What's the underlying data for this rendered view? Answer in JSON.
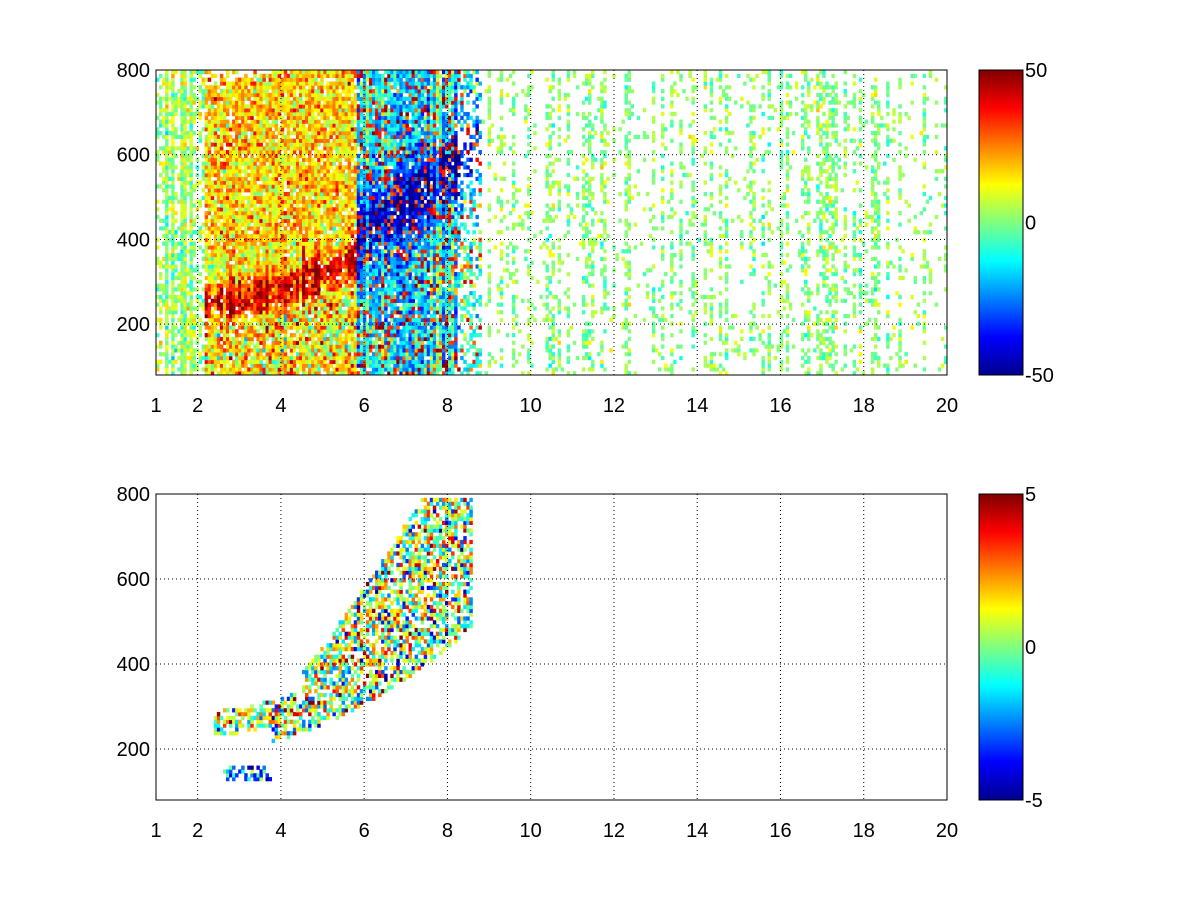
{
  "chart_data": [
    {
      "type": "heatmap",
      "title": "",
      "xlabel": "",
      "ylabel": "",
      "xlim": [
        1,
        20
      ],
      "ylim": [
        80,
        800
      ],
      "x_ticks": [
        "1",
        "2",
        "4",
        "6",
        "8",
        "10",
        "12",
        "14",
        "16",
        "18",
        "20"
      ],
      "x_tick_values": [
        1,
        2,
        4,
        6,
        8,
        10,
        12,
        14,
        16,
        18,
        20
      ],
      "y_ticks": [
        "200",
        "400",
        "600",
        "800"
      ],
      "y_tick_values": [
        200,
        400,
        600,
        800
      ],
      "grid": true,
      "colormap": "jet",
      "clim": [
        -50,
        50
      ],
      "colorbar_ticks": [
        "50",
        "0",
        "-50"
      ],
      "colorbar_tick_values": [
        50,
        0,
        -50
      ],
      "features": [
        {
          "description_values": "positive ridge",
          "x": [
            2.5,
            3.5,
            4.5,
            5.5
          ],
          "y": [
            260,
            270,
            300,
            330
          ],
          "value": 40
        },
        {
          "description_values": "negative region",
          "x": [
            5.8,
            7.8
          ],
          "y": [
            300,
            450
          ],
          "value": -40
        }
      ]
    },
    {
      "type": "heatmap",
      "title": "",
      "xlabel": "",
      "ylabel": "",
      "xlim": [
        1,
        20
      ],
      "ylim": [
        80,
        800
      ],
      "x_ticks": [
        "1",
        "2",
        "4",
        "6",
        "8",
        "10",
        "12",
        "14",
        "16",
        "18",
        "20"
      ],
      "x_tick_values": [
        1,
        2,
        4,
        6,
        8,
        10,
        12,
        14,
        16,
        18,
        20
      ],
      "y_ticks": [
        "200",
        "400",
        "600",
        "800"
      ],
      "y_tick_values": [
        200,
        400,
        600,
        800
      ],
      "grid": true,
      "colormap": "jet",
      "clim": [
        -5,
        5
      ],
      "colorbar_ticks": [
        "5",
        "0",
        "-5"
      ],
      "colorbar_tick_values": [
        5,
        0,
        -5
      ],
      "data_extent": {
        "x": [
          2.5,
          8.5
        ],
        "y": [
          120,
          780
        ]
      }
    }
  ]
}
